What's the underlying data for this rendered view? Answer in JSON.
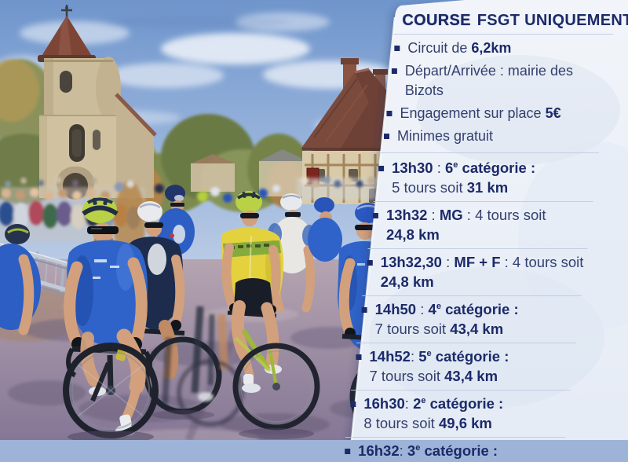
{
  "colors": {
    "navy": "#1c2a69",
    "text_regular": "#333f6e",
    "panel_bg": "#f2f5fa",
    "panel_bg_deep": "#e5ebf5",
    "divider": "#bfcbe2",
    "sky": "#7da3d6",
    "jersey_blue": "#2f63c9",
    "jersey_yellow": "#e4d13e",
    "helmet_lime": "#b9d245",
    "roof_brown": "#7c4536",
    "road": "#96889f"
  },
  "panel": {
    "title_strong": "COURSE",
    "title_rest": "FSGT UNIQUEMENT",
    "info": {
      "items": [
        {
          "segments": [
            {
              "text": "Circuit de ",
              "style": "r"
            },
            {
              "text": "6,2km",
              "style": "b"
            }
          ]
        },
        {
          "segments": [
            {
              "text": "Départ/Arrivée : mairie des Bizots",
              "style": "r"
            }
          ]
        },
        {
          "segments": [
            {
              "text": "Engagement sur place ",
              "style": "r"
            },
            {
              "text": "5€",
              "style": "b"
            }
          ]
        },
        {
          "segments": [
            {
              "text": "Minimes gratuit",
              "style": "r"
            }
          ]
        }
      ]
    },
    "schedule": {
      "items": [
        {
          "line1": [
            {
              "text": "13h30",
              "style": "b"
            },
            {
              "text": " : ",
              "style": "r"
            },
            {
              "text": "6",
              "style": "b"
            },
            {
              "text": "e",
              "style": "b sup"
            },
            {
              "text": " catégorie",
              "style": "b"
            },
            {
              "text": " :",
              "style": "b"
            }
          ],
          "line2": [
            {
              "text": "5 tours soit ",
              "style": "r"
            },
            {
              "text": "31 km",
              "style": "b"
            }
          ]
        },
        {
          "line1": [
            {
              "text": "13h32",
              "style": "b"
            },
            {
              "text": " : ",
              "style": "r"
            },
            {
              "text": "MG",
              "style": "b"
            },
            {
              "text": " : ",
              "style": "r"
            },
            {
              "text": "4 tours soit",
              "style": "r"
            }
          ],
          "line2": [
            {
              "text": "24,8 km",
              "style": "b"
            }
          ]
        },
        {
          "line1": [
            {
              "text": "13h32,30",
              "style": "b"
            },
            {
              "text": " : ",
              "style": "r"
            },
            {
              "text": "MF + F",
              "style": "b"
            },
            {
              "text": " : ",
              "style": "r"
            },
            {
              "text": "4 tours soit",
              "style": "r"
            }
          ],
          "line2": [
            {
              "text": "24,8 km",
              "style": "b"
            }
          ]
        },
        {
          "line1": [
            {
              "text": "14h50",
              "style": "b"
            },
            {
              "text": " : ",
              "style": "r"
            },
            {
              "text": "4",
              "style": "b"
            },
            {
              "text": "e",
              "style": "b sup"
            },
            {
              "text": " catégorie",
              "style": "b"
            },
            {
              "text": " :",
              "style": "b"
            }
          ],
          "line2": [
            {
              "text": "7 tours soit ",
              "style": "r"
            },
            {
              "text": "43,4 km",
              "style": "b"
            }
          ]
        },
        {
          "line1": [
            {
              "text": "14h52",
              "style": "b"
            },
            {
              "text": ": ",
              "style": "r"
            },
            {
              "text": "5",
              "style": "b"
            },
            {
              "text": "e",
              "style": "b sup"
            },
            {
              "text": " catégorie",
              "style": "b"
            },
            {
              "text": " :",
              "style": "b"
            }
          ],
          "line2": [
            {
              "text": "7 tours soit ",
              "style": "r"
            },
            {
              "text": "43,4 km",
              "style": "b"
            }
          ]
        },
        {
          "line1": [
            {
              "text": "16h30",
              "style": "b"
            },
            {
              "text": ": ",
              "style": "r"
            },
            {
              "text": "2",
              "style": "b"
            },
            {
              "text": "e",
              "style": "b sup"
            },
            {
              "text": " catégorie",
              "style": "b"
            },
            {
              "text": " :",
              "style": "b"
            }
          ],
          "line2": [
            {
              "text": "8 tours soit ",
              "style": "r"
            },
            {
              "text": "49,6 km",
              "style": "b"
            }
          ]
        },
        {
          "line1": [
            {
              "text": "16h32",
              "style": "b"
            },
            {
              "text": ": ",
              "style": "r"
            },
            {
              "text": "3",
              "style": "b"
            },
            {
              "text": "e",
              "style": "b sup"
            },
            {
              "text": " catégorie",
              "style": "b"
            },
            {
              "text": " :",
              "style": "b"
            }
          ],
          "line2": null
        }
      ]
    }
  }
}
